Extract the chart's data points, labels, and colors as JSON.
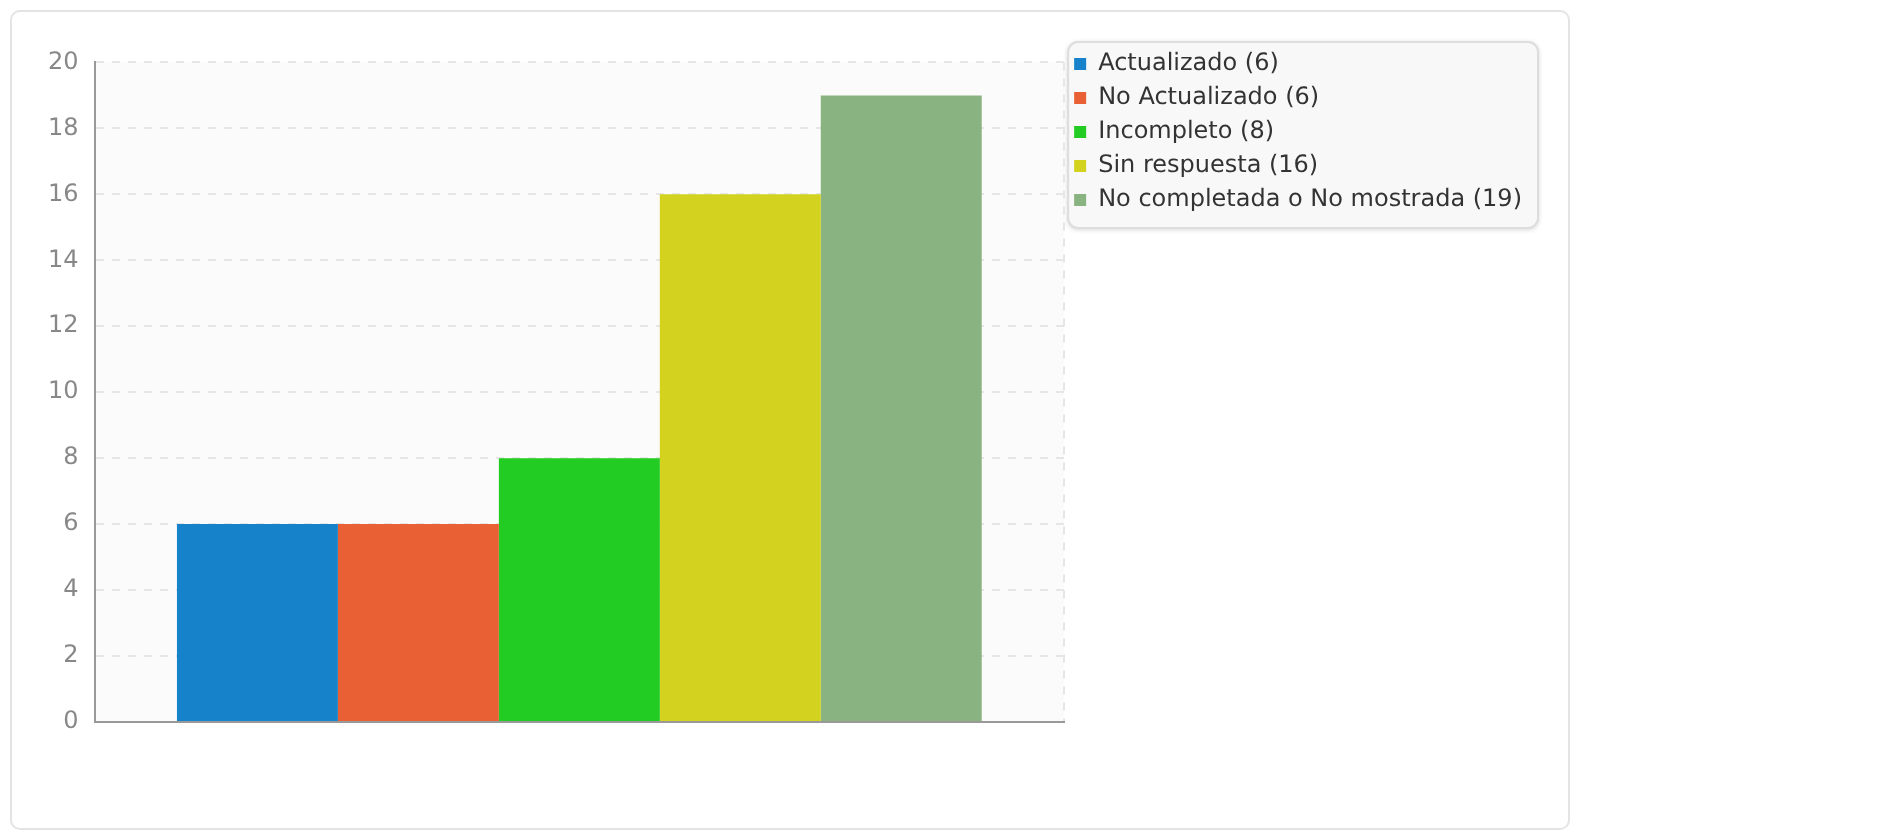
{
  "chart_data": {
    "type": "bar",
    "categories": [
      null
    ],
    "series": [
      {
        "name": "Actualizado (6)",
        "color": "#1582c9",
        "values": [
          6
        ]
      },
      {
        "name": "No Actualizado (6)",
        "color": "#e86034",
        "values": [
          6
        ]
      },
      {
        "name": "Incompleto (8)",
        "color": "#22cc22",
        "values": [
          8
        ]
      },
      {
        "name": "Sin respuesta (16)",
        "color": "#d3d31f",
        "values": [
          16
        ]
      },
      {
        "name": "No completada o No mostrada (19)",
        "color": "#8ab382",
        "values": [
          19
        ]
      }
    ],
    "ylim": [
      0,
      20
    ],
    "yticks": [
      0,
      2,
      4,
      6,
      8,
      10,
      12,
      14,
      16,
      18,
      20
    ],
    "grid": true,
    "legend": "top right"
  }
}
